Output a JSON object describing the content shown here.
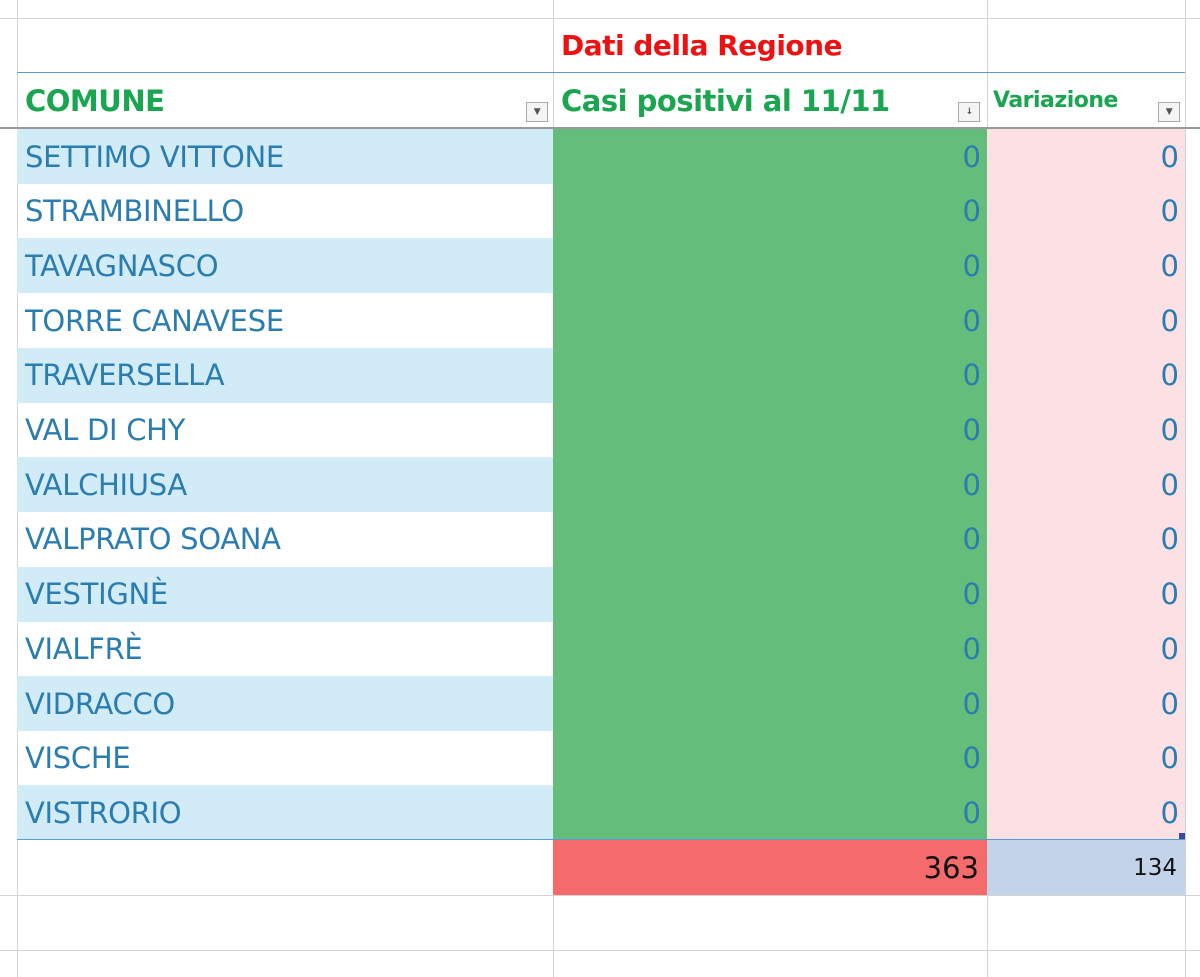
{
  "sheet": {
    "group_title": "Dati della Regione",
    "headers": {
      "comune": "COMUNE",
      "casi": "Casi positivi al 11/11",
      "variazione": "Variazione"
    },
    "rows": [
      {
        "comune": "SETTIMO VITTONE",
        "casi": "0",
        "variazione": "0"
      },
      {
        "comune": "STRAMBINELLO",
        "casi": "0",
        "variazione": "0"
      },
      {
        "comune": "TAVAGNASCO",
        "casi": "0",
        "variazione": "0"
      },
      {
        "comune": "TORRE CANAVESE",
        "casi": "0",
        "variazione": "0"
      },
      {
        "comune": "TRAVERSELLA",
        "casi": "0",
        "variazione": "0"
      },
      {
        "comune": "VAL DI CHY",
        "casi": "0",
        "variazione": "0"
      },
      {
        "comune": "VALCHIUSA",
        "casi": "0",
        "variazione": "0"
      },
      {
        "comune": "VALPRATO SOANA",
        "casi": "0",
        "variazione": "0"
      },
      {
        "comune": "VESTIGNÈ",
        "casi": "0",
        "variazione": "0"
      },
      {
        "comune": "VIALFRÈ",
        "casi": "0",
        "variazione": "0"
      },
      {
        "comune": "VIDRACCO",
        "casi": "0",
        "variazione": "0"
      },
      {
        "comune": "VISCHE",
        "casi": "0",
        "variazione": "0"
      },
      {
        "comune": "VISTRORIO",
        "casi": "0",
        "variazione": "0"
      }
    ],
    "totals": {
      "casi": "363",
      "variazione": "134"
    },
    "colors": {
      "casi_fill": "#65bd7b",
      "variazione_fill": "#fbe1e4",
      "total_casi_fill": "#f56b6b",
      "total_var_fill": "#c3d3ea",
      "band": "#d2ecf7",
      "header_text": "#1aa550",
      "title_text": "#ee1111"
    }
  }
}
